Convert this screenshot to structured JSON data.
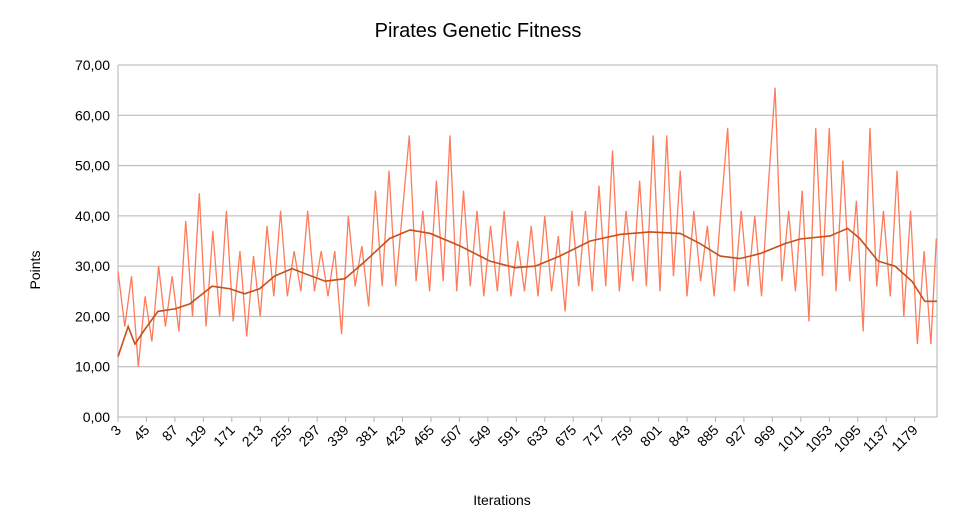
{
  "chart_data": {
    "type": "line",
    "title": "Pirates Genetic Fitness",
    "x_label": "Iterations",
    "y_label": "Points",
    "xlim": [
      3,
      1212
    ],
    "xticks": [
      3,
      45,
      87,
      129,
      171,
      213,
      255,
      297,
      339,
      381,
      423,
      465,
      507,
      549,
      591,
      633,
      675,
      717,
      759,
      801,
      843,
      885,
      927,
      969,
      1011,
      1053,
      1095,
      1137,
      1179
    ],
    "ylim": [
      0,
      70
    ],
    "yticks": [
      {
        "value": 0,
        "label": "0,00"
      },
      {
        "value": 10,
        "label": "10,00"
      },
      {
        "value": 20,
        "label": "20,00"
      },
      {
        "value": 30,
        "label": "30,00"
      },
      {
        "value": 40,
        "label": "40,00"
      },
      {
        "value": 50,
        "label": "50,00"
      },
      {
        "value": 60,
        "label": "60,00"
      },
      {
        "value": 70,
        "label": "70,00"
      }
    ],
    "grid": true,
    "series": [
      {
        "color": "#ff7b5a",
        "x": [
          3,
          13,
          23,
          33,
          43,
          53,
          63,
          73,
          83,
          93,
          103,
          113,
          123,
          133,
          143,
          153,
          163,
          173,
          183,
          193,
          203,
          213,
          223,
          233,
          243,
          253,
          263,
          273,
          283,
          293,
          303,
          313,
          323,
          333,
          343,
          353,
          363,
          373,
          383,
          393,
          403,
          413,
          423,
          433,
          443,
          453,
          463,
          473,
          483,
          493,
          503,
          513,
          523,
          533,
          543,
          553,
          563,
          573,
          583,
          593,
          603,
          613,
          623,
          633,
          643,
          653,
          663,
          673,
          683,
          693,
          703,
          713,
          723,
          733,
          743,
          753,
          763,
          773,
          783,
          793,
          803,
          813,
          823,
          833,
          843,
          853,
          863,
          873,
          883,
          893,
          903,
          913,
          923,
          933,
          943,
          953,
          963,
          973,
          983,
          993,
          1003,
          1013,
          1023,
          1033,
          1043,
          1053,
          1063,
          1073,
          1083,
          1093,
          1103,
          1113,
          1123,
          1133,
          1143,
          1153,
          1163,
          1173,
          1183,
          1193,
          1203,
          1211
        ],
        "values": [
          29,
          18,
          28,
          10,
          24,
          15,
          30,
          18,
          28,
          17,
          39,
          20,
          44.5,
          18,
          37,
          20,
          41,
          19,
          33,
          16,
          32,
          20,
          38,
          24,
          41,
          24,
          33,
          25,
          41,
          25,
          33,
          24,
          33,
          16.5,
          40,
          26,
          34,
          22,
          45,
          26,
          49,
          26,
          41,
          56,
          27,
          41,
          25,
          47,
          27,
          56,
          25,
          45,
          26,
          41,
          24,
          38,
          25,
          41,
          24,
          35,
          25,
          38,
          24,
          40,
          25,
          36,
          21,
          41,
          26,
          41,
          25,
          46,
          26,
          53,
          25,
          41,
          27,
          47,
          26,
          56,
          25,
          56,
          28,
          49,
          24,
          41,
          27,
          38,
          24,
          41,
          57.5,
          25,
          41,
          26,
          40,
          24,
          46,
          65.5,
          27,
          41,
          25,
          45,
          19,
          57.5,
          28,
          57.5,
          25,
          51,
          27,
          43,
          17,
          57.5,
          26,
          41,
          24,
          49,
          20,
          41,
          14.5,
          33,
          14.5,
          35.5
        ]
      },
      {
        "color": "#c4501b",
        "x": [
          3,
          18,
          28,
          43,
          62,
          87,
          109,
          142,
          168,
          190,
          212,
          234,
          260,
          279,
          309,
          338,
          368,
          404,
          434,
          464,
          508,
          552,
          589,
          619,
          655,
          700,
          744,
          788,
          833,
          862,
          892,
          921,
          951,
          988,
          1010,
          1054,
          1080,
          1098,
          1125,
          1150,
          1175,
          1194,
          1212
        ],
        "values": [
          12,
          18,
          14.5,
          17.5,
          21,
          21.5,
          22.5,
          26,
          25.5,
          24.5,
          25.5,
          28,
          29.5,
          28.5,
          27,
          27.5,
          31,
          35.5,
          37.2,
          36.5,
          34,
          31,
          29.7,
          30,
          32,
          35,
          36.3,
          36.8,
          36.5,
          34.5,
          32,
          31.5,
          32.5,
          34.5,
          35.4,
          36,
          37.5,
          35.5,
          31,
          30,
          27,
          23,
          23
        ]
      }
    ]
  }
}
